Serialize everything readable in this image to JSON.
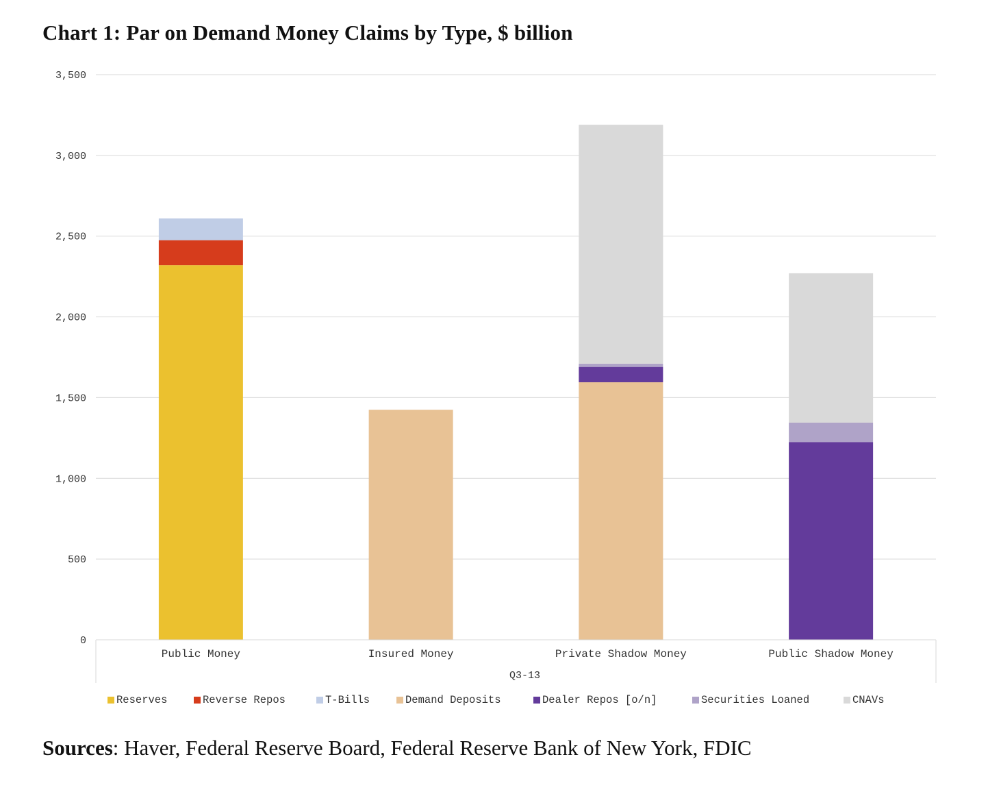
{
  "title": "Chart 1: Par on Demand Money Claims by Type, $ billion",
  "sources": {
    "label": "Sources",
    "text": ": Haver, Federal Reserve Board, Federal Reserve Bank of New York, FDIC"
  },
  "chart_data": {
    "type": "bar",
    "stacked": true,
    "categories": [
      "Public Money",
      "Insured Money",
      "Private Shadow Money",
      "Public Shadow Money"
    ],
    "xlabel": "Q3-13",
    "ylabel": "",
    "ylim": [
      0,
      3500
    ],
    "yticks": [
      0,
      500,
      1000,
      1500,
      2000,
      2500,
      3000,
      3500
    ],
    "ytick_labels": [
      "0",
      "500",
      "1,000",
      "1,500",
      "2,000",
      "2,500",
      "3,000",
      "3,500"
    ],
    "grid": true,
    "legend_position": "bottom",
    "series": [
      {
        "name": "Reserves",
        "color": "#ebc12f",
        "values": [
          2320,
          0,
          0,
          0
        ]
      },
      {
        "name": "Reverse Repos",
        "color": "#d63c1c",
        "values": [
          155,
          0,
          0,
          0
        ]
      },
      {
        "name": "T-Bills",
        "color": "#c0cde6",
        "values": [
          135,
          0,
          0,
          0
        ]
      },
      {
        "name": "Demand Deposits",
        "color": "#e8c295",
        "values": [
          0,
          1425,
          1595,
          0
        ]
      },
      {
        "name": "Dealer Repos [o/n]",
        "color": "#633b9b",
        "values": [
          0,
          0,
          95,
          1225
        ]
      },
      {
        "name": "Securities Loaned",
        "color": "#afa3c8",
        "values": [
          0,
          0,
          20,
          120
        ]
      },
      {
        "name": "CNAVs",
        "color": "#d9d9d9",
        "values": [
          0,
          0,
          1480,
          925
        ]
      }
    ]
  }
}
